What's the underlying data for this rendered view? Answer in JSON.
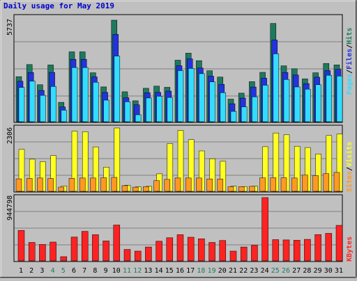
{
  "chart_data": [
    {
      "type": "bar",
      "title": "Daily usage for May 2019",
      "categories": [
        "1",
        "2",
        "3",
        "4",
        "5",
        "6",
        "7",
        "8",
        "9",
        "10",
        "11",
        "12",
        "13",
        "14",
        "15",
        "16",
        "17",
        "18",
        "19",
        "20",
        "21",
        "22",
        "23",
        "24",
        "25",
        "26",
        "27",
        "28",
        "29",
        "30",
        "31"
      ],
      "weekend_days": [
        "4",
        "5",
        "11",
        "12",
        "18",
        "19",
        "25",
        "26"
      ],
      "ylabel_max": "5737",
      "ylabel_parts": [
        "Pages",
        "/",
        "Files",
        "/",
        "Hits"
      ],
      "series": [
        {
          "name": "Hits",
          "color": "#1e7a5e",
          "values": [
            2547,
            3229,
            2091,
            3208,
            1095,
            3948,
            3948,
            2767,
            1968,
            5737,
            1694,
            1184,
            1891,
            2012,
            1947,
            3476,
            3876,
            3452,
            2879,
            2521,
            1279,
            1615,
            2265,
            2789,
            5554,
            3161,
            2995,
            2420,
            2768,
            3294,
            3210
          ]
        },
        {
          "name": "Files",
          "color": "#2233dd",
          "values": [
            2287,
            2781,
            1768,
            2787,
            836,
            3528,
            3528,
            2535,
            1653,
            4937,
            1354,
            954,
            1641,
            1658,
            1730,
            3162,
            3552,
            3032,
            2568,
            2110,
            1019,
            1337,
            1961,
            2465,
            4618,
            2787,
            2640,
            2154,
            2519,
            2889,
            2958
          ]
        },
        {
          "name": "Pages",
          "color": "#33ddff",
          "values": [
            1938,
            2293,
            1491,
            1991,
            653,
            3061,
            3061,
            2229,
            1219,
            3708,
            1127,
            392,
            1338,
            1443,
            1372,
            2890,
            3010,
            2717,
            2252,
            1644,
            585,
            841,
            1406,
            2061,
            3835,
            2384,
            1965,
            1838,
            2090,
            2624,
            2582
          ]
        }
      ]
    },
    {
      "type": "bar",
      "categories": [
        "1",
        "2",
        "3",
        "4",
        "5",
        "6",
        "7",
        "8",
        "9",
        "10",
        "11",
        "12",
        "13",
        "14",
        "15",
        "16",
        "17",
        "18",
        "19",
        "20",
        "21",
        "22",
        "23",
        "24",
        "25",
        "26",
        "27",
        "28",
        "29",
        "30",
        "31"
      ],
      "ylabel_max": "2306",
      "ylabel_parts": [
        "Sites",
        "/",
        "Visits"
      ],
      "series": [
        {
          "name": "Visits",
          "color": "#ffff22",
          "values": [
            1527,
            1168,
            1079,
            1302,
            191,
            2193,
            2172,
            1617,
            880,
            2306,
            220,
            163,
            181,
            637,
            1738,
            2217,
            1882,
            1469,
            1186,
            1091,
            184,
            172,
            184,
            1624,
            2124,
            2057,
            1642,
            1595,
            1361,
            2032,
            2082
          ]
        },
        {
          "name": "Sites",
          "color": "#ff9922",
          "values": [
            454,
            470,
            484,
            470,
            152,
            473,
            484,
            484,
            493,
            507,
            205,
            150,
            170,
            387,
            433,
            484,
            484,
            484,
            450,
            446,
            165,
            168,
            180,
            490,
            495,
            495,
            484,
            594,
            572,
            640,
            687
          ]
        }
      ]
    },
    {
      "type": "bar",
      "categories": [
        "1",
        "2",
        "3",
        "4",
        "5",
        "6",
        "7",
        "8",
        "9",
        "10",
        "11",
        "12",
        "13",
        "14",
        "15",
        "16",
        "17",
        "18",
        "19",
        "20",
        "21",
        "22",
        "23",
        "24",
        "25",
        "26",
        "27",
        "28",
        "29",
        "30",
        "31"
      ],
      "ylabel_max": "944798",
      "ylabel_parts": [
        "KBytes"
      ],
      "series": [
        {
          "name": "KBytes",
          "color": "#ff2222",
          "values": [
            455000,
            275000,
            245000,
            280000,
            62000,
            355000,
            440000,
            390000,
            297000,
            535000,
            170000,
            145000,
            207000,
            293000,
            345000,
            390000,
            353000,
            329000,
            275000,
            304000,
            145000,
            207000,
            233000,
            944798,
            317000,
            312000,
            307000,
            321000,
            392000,
            410000,
            530000
          ]
        }
      ]
    }
  ]
}
